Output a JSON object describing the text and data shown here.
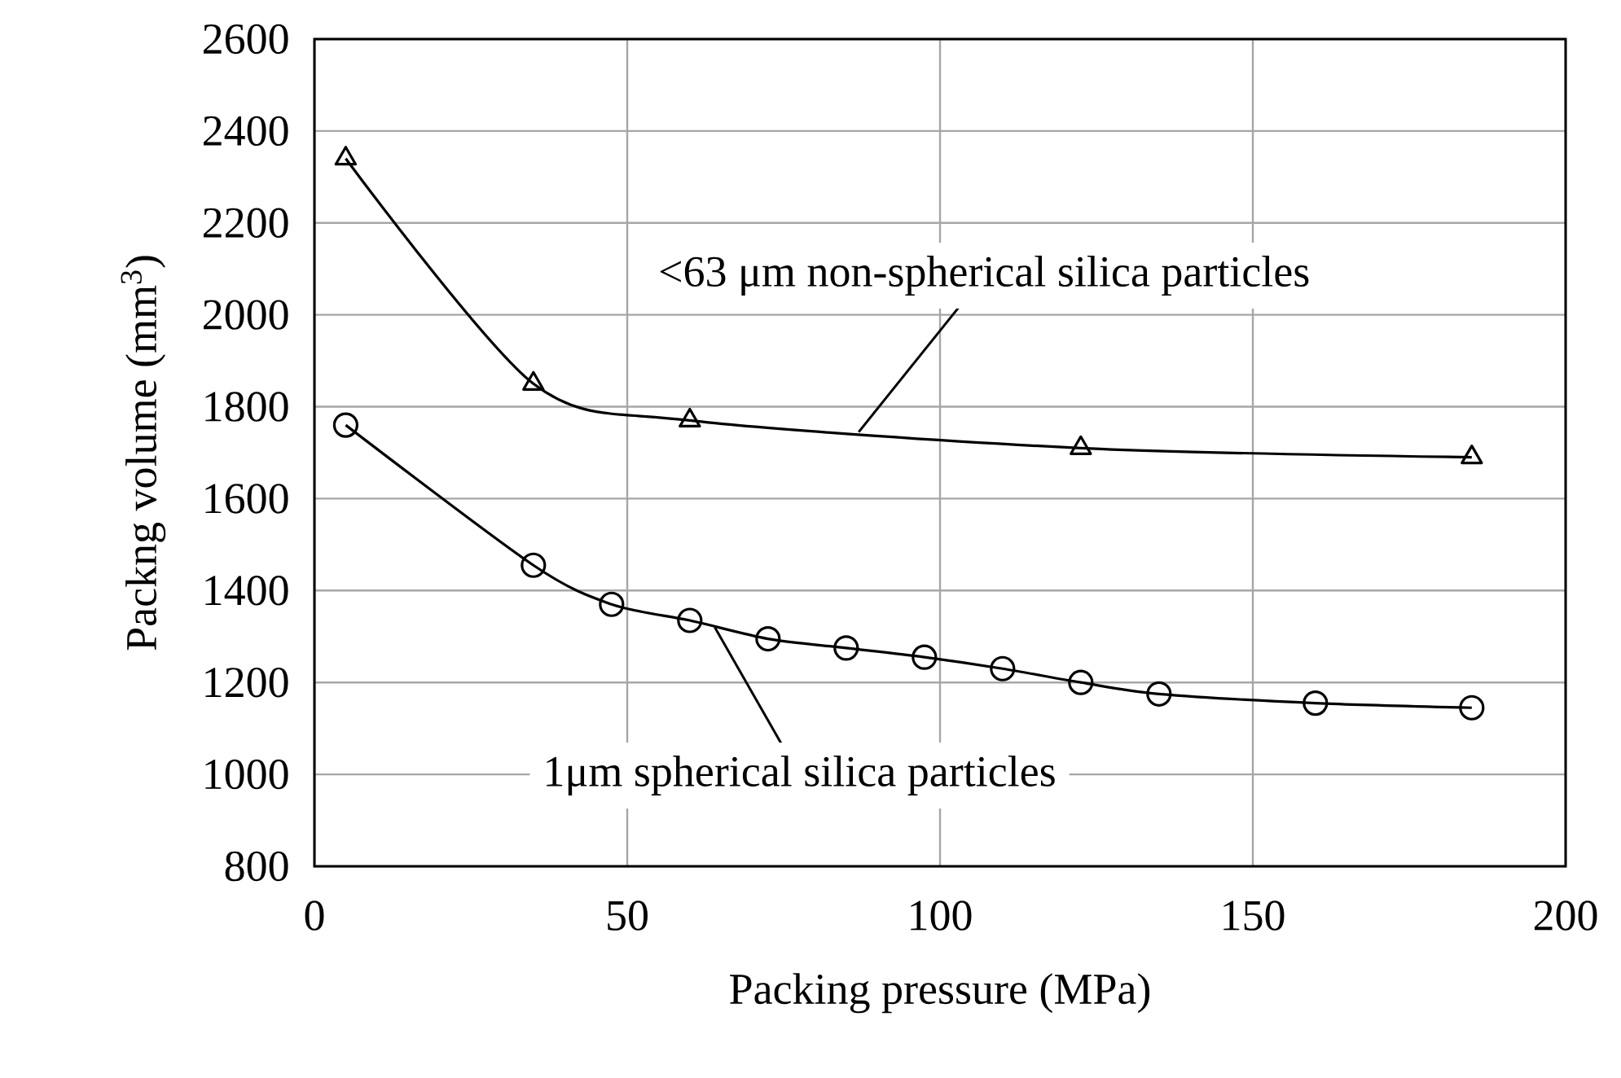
{
  "chart_data": {
    "type": "line",
    "xlabel": "Packing pressure (MPa)",
    "ylabel": "Packng volume (mm$^{3}$)",
    "xlim": [
      0,
      200
    ],
    "xticks": [
      0,
      50,
      100,
      150,
      200
    ],
    "ylim": [
      800,
      2600
    ],
    "yticks": [
      800,
      1000,
      1200,
      1400,
      1600,
      1800,
      2000,
      2200,
      2400,
      2600
    ],
    "grid": true,
    "line_style": "solid",
    "series": [
      {
        "color": "#000000",
        "marker": "triangle",
        "x": [
          5,
          35,
          60,
          122.5,
          185
        ],
        "values": [
          2340,
          1850,
          1770,
          1710,
          1690
        ]
      },
      {
        "color": "#000000",
        "marker": "circle",
        "x": [
          5,
          35,
          47.5,
          60,
          72.5,
          85,
          97.5,
          110,
          122.5,
          135,
          160,
          185
        ],
        "values": [
          1760,
          1455,
          1370,
          1335,
          1295,
          1275,
          1255,
          1230,
          1200,
          1175,
          1155,
          1145
        ]
      }
    ],
    "annotations": [
      {
        "text": "<63 μm non-spherical  silica particles",
        "x": 87,
        "y": 1745
      },
      {
        "text": "1μm spherical  silica particles",
        "x": 64,
        "y": 1320
      }
    ]
  }
}
